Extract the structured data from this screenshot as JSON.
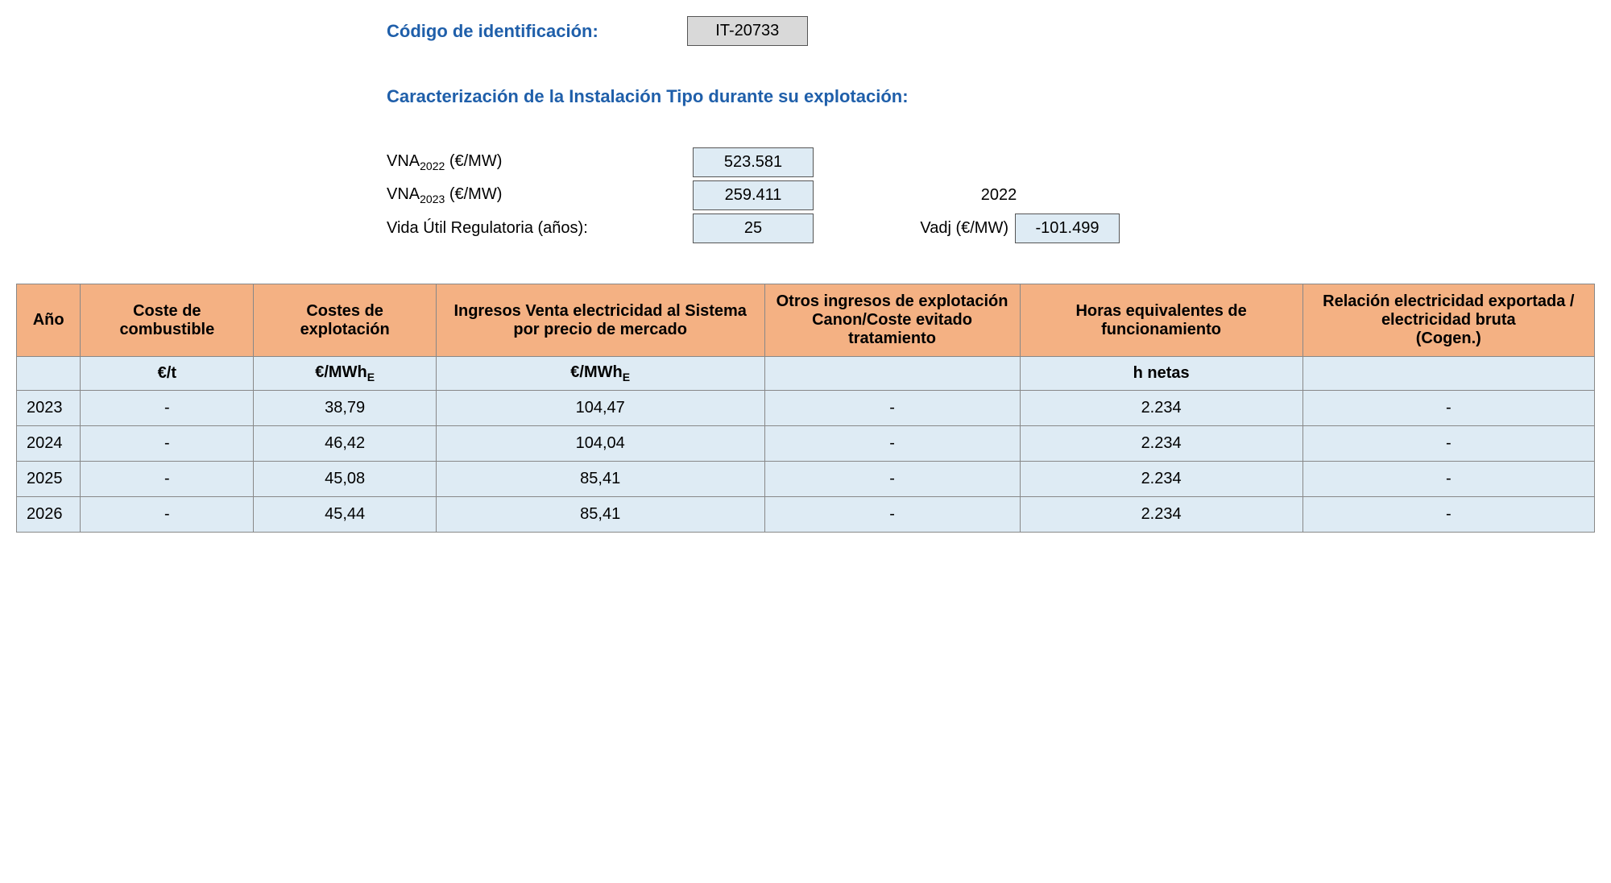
{
  "header": {
    "id_label": "Código de identificación:",
    "id_value": "IT-20733",
    "section_title": "Caracterización de la Instalación Tipo durante su explotación:"
  },
  "params": {
    "vna1_label_prefix": "VNA",
    "vna1_sub": "2022",
    "vna1_unit": " (€/MW)",
    "vna1_value": "523.581",
    "vna2_label_prefix": "VNA",
    "vna2_sub": "2023",
    "vna2_unit": " (€/MW)",
    "vna2_value": "259.411",
    "ref_year": "2022",
    "vida_label": "Vida Útil Regulatoria (años):",
    "vida_value": "25",
    "vadj_label": "Vadj (€/MW)",
    "vadj_value": "-101.499"
  },
  "table": {
    "columns": [
      "Año",
      "Coste de combustible",
      "Costes de explotación",
      "Ingresos Venta electricidad al Sistema por precio de mercado",
      "Otros ingresos de explotación Canon/Coste evitado tratamiento",
      "Horas equivalentes de funcionamiento",
      "Relación electricidad exportada / electricidad bruta\n(Cogen.)"
    ],
    "units": [
      "",
      "€/t",
      "€/MWh",
      "€/MWh",
      "",
      "h netas",
      ""
    ],
    "col_widths": [
      "70px",
      "190px",
      "200px",
      "360px",
      "280px",
      "310px",
      "320px"
    ],
    "rows": [
      [
        "2023",
        "-",
        "38,79",
        "104,47",
        "-",
        "2.234",
        "-"
      ],
      [
        "2024",
        "-",
        "46,42",
        "104,04",
        "-",
        "2.234",
        "-"
      ],
      [
        "2025",
        "-",
        "45,08",
        "85,41",
        "-",
        "2.234",
        "-"
      ],
      [
        "2026",
        "-",
        "45,44",
        "85,41",
        "-",
        "2.234",
        "-"
      ]
    ]
  },
  "colors": {
    "header_bg": "#f4b183",
    "cell_bg": "#deebf4",
    "blue_text": "#1f5faa",
    "id_bg": "#d9d9d9"
  }
}
